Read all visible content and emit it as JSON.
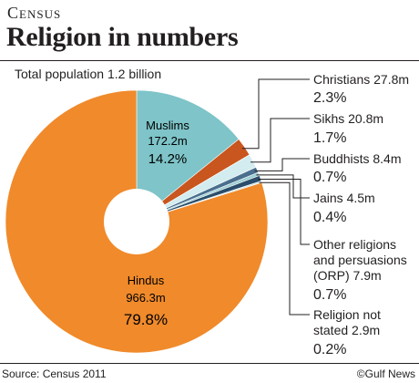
{
  "header": {
    "kicker": "Census",
    "title": "Religion in numbers"
  },
  "total_label": "Total population 1.2 billion",
  "footer": {
    "source": "Source: Census 2011",
    "credit": "©Gulf News"
  },
  "colors": {
    "hindus": "#f08a2b",
    "muslims": "#7ec4c8",
    "christians": "#c8561e",
    "sikhs": "#d3ecef",
    "buddhists": "#4a6f8e",
    "jains": "#9ccfd3",
    "other": "#2a4e6c",
    "not_stated": "#cde6e9"
  },
  "chart_data": {
    "type": "pie",
    "title": "Religion in numbers",
    "subtitle": "Total population 1.2 billion",
    "slices": [
      {
        "label": "Hindus",
        "count": "966.3m",
        "percent": 79.8
      },
      {
        "label": "Muslims",
        "count": "172.2m",
        "percent": 14.2
      },
      {
        "label": "Christians",
        "count": "27.8m",
        "percent": 2.3
      },
      {
        "label": "Sikhs",
        "count": "20.8m",
        "percent": 1.7
      },
      {
        "label": "Buddhists",
        "count": "8.4m",
        "percent": 0.7
      },
      {
        "label": "Jains",
        "count": "4.5m",
        "percent": 0.4
      },
      {
        "label": "Other religions and persuasions (ORP)",
        "count": "7.9m",
        "percent": 0.7
      },
      {
        "label": "Religion not stated",
        "count": "2.9m",
        "percent": 0.2
      }
    ]
  },
  "labels": {
    "hindus": {
      "name": "Hindus",
      "count": "966.3m",
      "pct": "79.8%"
    },
    "muslims": {
      "name": "Muslims",
      "count": "172.2m",
      "pct": "14.2%"
    },
    "christians": {
      "line1": "Christians 27.8m",
      "pct": "2.3%"
    },
    "sikhs": {
      "line1": "Sikhs 20.8m",
      "pct": "1.7%"
    },
    "buddhists": {
      "line1": "Buddhists 8.4m",
      "pct": "0.7%"
    },
    "jains": {
      "line1": "Jains 4.5m",
      "pct": "0.4%"
    },
    "other": {
      "line1": "Other religions",
      "line2": "and persuasions",
      "line3": "(ORP) 7.9m",
      "pct": "0.7%"
    },
    "not_stated": {
      "line1": "Religion not",
      "line2": "stated 2.9m",
      "pct": "0.2%"
    }
  }
}
